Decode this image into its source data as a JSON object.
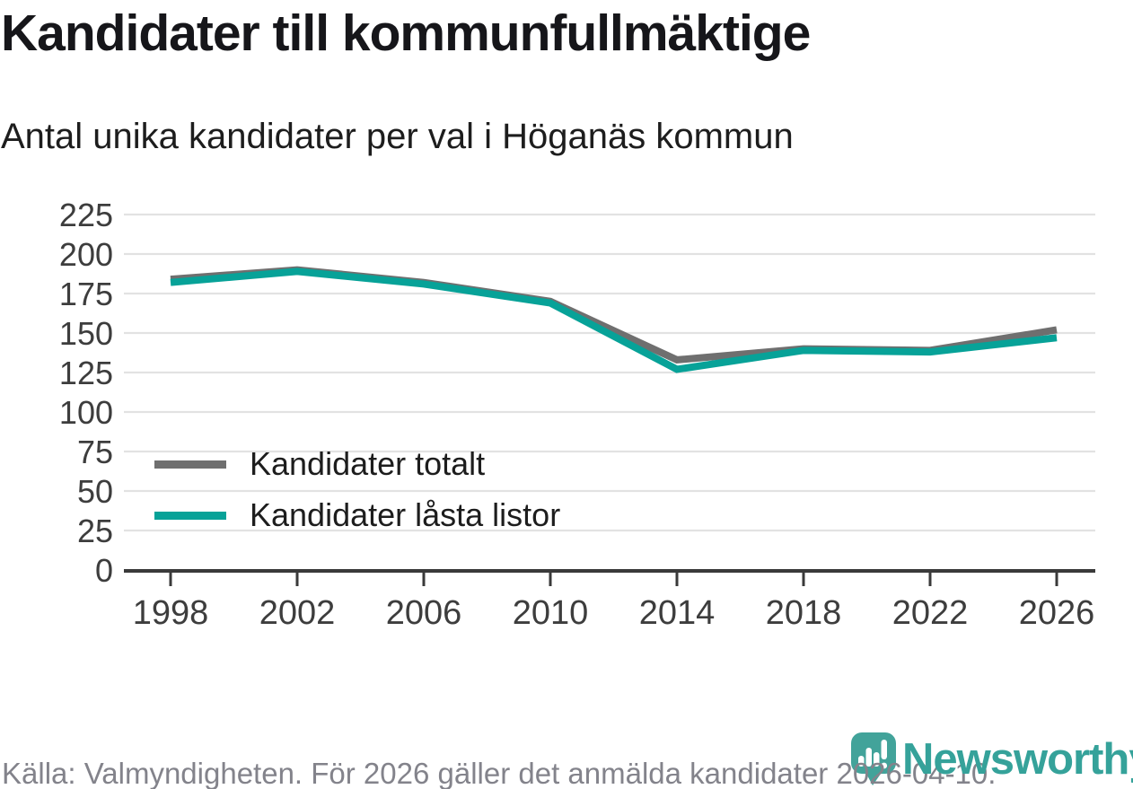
{
  "header": {
    "title": "Kandidater till kommunfullmäktige",
    "subtitle": "Antal unika kandidater per val i Höganäs kommun"
  },
  "chart_data": {
    "type": "line",
    "categories": [
      "1998",
      "2002",
      "2006",
      "2010",
      "2014",
      "2018",
      "2022",
      "2026"
    ],
    "series": [
      {
        "id": "kandidater-totalt",
        "name": "Kandidater totalt",
        "color": "#6f6f6f",
        "values": [
          184,
          190,
          182,
          170,
          133,
          140,
          139,
          152
        ]
      },
      {
        "id": "kandidater-lasta-listor",
        "name": "Kandidater låsta listor",
        "color": "#07a298",
        "values": [
          182,
          189,
          181,
          169,
          127,
          139,
          138,
          147
        ]
      }
    ],
    "yticks": [
      0,
      25,
      50,
      75,
      100,
      125,
      150,
      175,
      200,
      225
    ],
    "ylim": [
      0,
      225
    ],
    "xlabel": "",
    "ylabel": "",
    "grid": true,
    "legend_position": "inside-bottom-left",
    "colors": {
      "gridline": "#e2e2e2",
      "axis": "#3a3a3a",
      "tick_label": "#3d3d3d"
    }
  },
  "footer": {
    "source": "Källa: Valmyndigheten. För 2026 gäller det anmälda kandidater 2026-04-10."
  },
  "brand": {
    "wordmark": "Newsworthy",
    "icon": "newsworthy-pin-bar-chart-icon",
    "color": "#35a29a",
    "icon_color": "#42a39a"
  }
}
